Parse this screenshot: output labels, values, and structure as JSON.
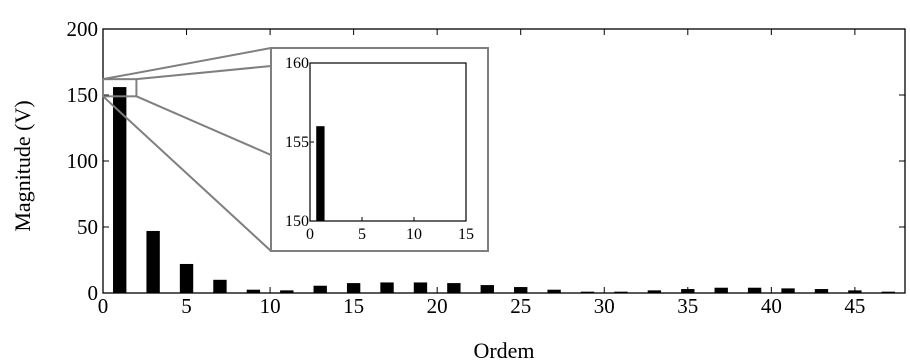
{
  "chart_data": {
    "type": "bar",
    "xlabel": "Ordem",
    "ylabel": "Magnitude (V)",
    "xlim": [
      0,
      48
    ],
    "ylim": [
      0,
      200
    ],
    "xticks": [
      0,
      5,
      10,
      15,
      20,
      25,
      30,
      35,
      40,
      45
    ],
    "yticks": [
      0,
      50,
      100,
      150,
      200
    ],
    "grid": false,
    "orders": [
      1,
      3,
      5,
      7,
      9,
      11,
      13,
      15,
      17,
      19,
      21,
      23,
      25,
      27,
      29,
      31,
      33,
      35,
      37,
      39,
      41,
      43,
      45,
      47
    ],
    "values": [
      156,
      47,
      22,
      10,
      2.5,
      2,
      5.5,
      7.5,
      8,
      8,
      7.5,
      6,
      4.5,
      2.5,
      1,
      1,
      2,
      3,
      4,
      4,
      3.5,
      3,
      2,
      1
    ],
    "inset": {
      "xlim": [
        0,
        15
      ],
      "ylim": [
        150,
        160
      ],
      "xticks": [
        0,
        5,
        10,
        15
      ],
      "yticks": [
        150,
        155,
        160
      ],
      "orders": [
        1
      ],
      "values": [
        156
      ]
    },
    "colors": {
      "bar": "#000000",
      "zoom_box": "#7f7f7f",
      "axis": "#000000"
    }
  }
}
